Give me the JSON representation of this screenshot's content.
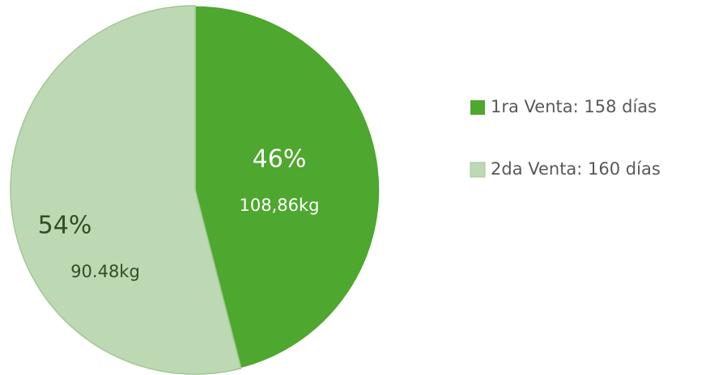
{
  "chart_data": {
    "type": "pie",
    "categories": [
      "1ra Venta: 158 días",
      "2da Venta: 160 días"
    ],
    "values": [
      46,
      54
    ],
    "value_labels": [
      "46%",
      "54%"
    ],
    "weight_labels": [
      "108,86kg",
      "90.48kg"
    ],
    "colors": [
      "#4ea72e",
      "#bcd9b4"
    ],
    "label_colors": [
      "#ffffff",
      "#2f4f26"
    ],
    "legend": "right"
  }
}
